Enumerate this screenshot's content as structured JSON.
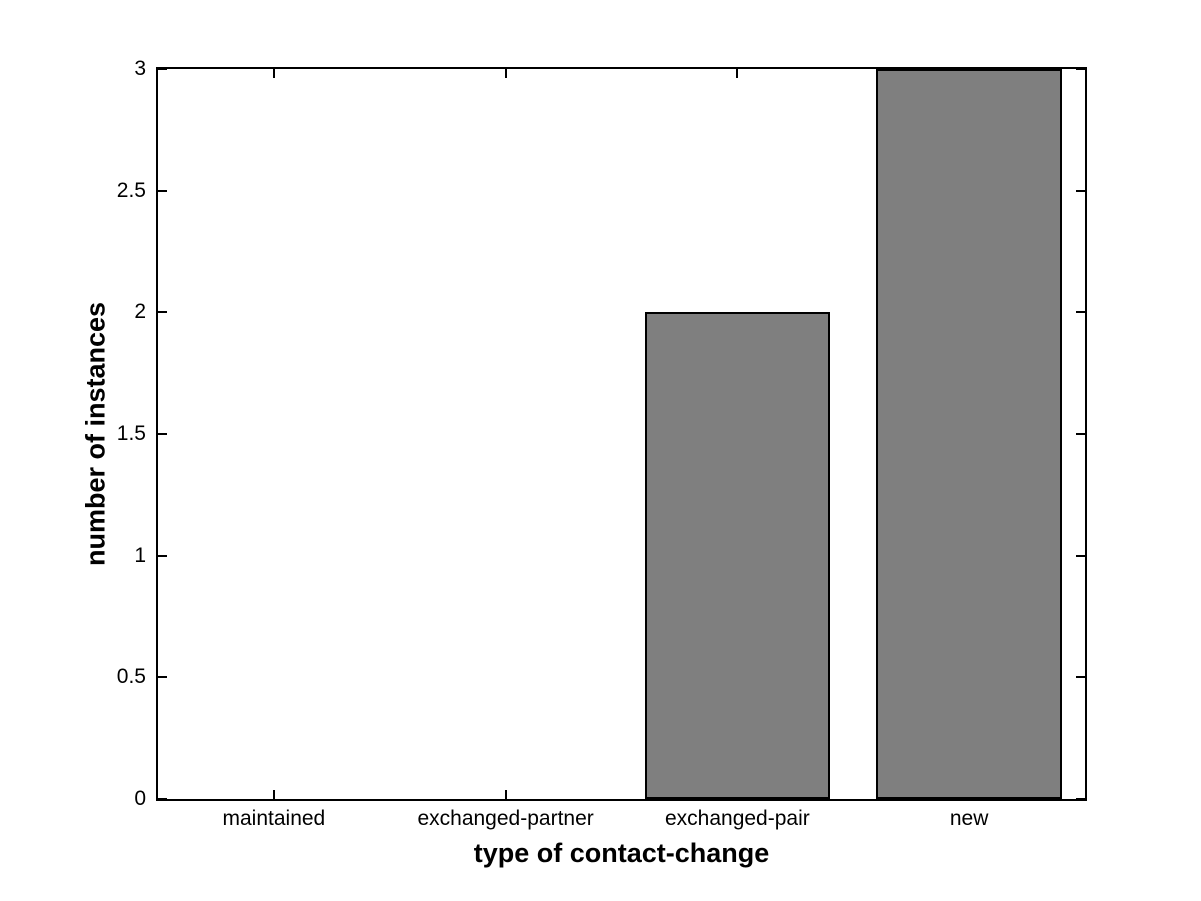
{
  "chart_data": {
    "type": "bar",
    "title": "",
    "xlabel": "type of contact-change",
    "ylabel": "number of instances",
    "categories": [
      "maintained",
      "exchanged-partner",
      "exchanged-pair",
      "new"
    ],
    "values": [
      0,
      0,
      2,
      3
    ],
    "xlim": [
      0.5,
      4.5
    ],
    "ylim": [
      0,
      3
    ],
    "yticks": [
      0,
      0.5,
      1,
      1.5,
      2,
      2.5,
      3
    ],
    "ytick_labels": [
      "0",
      "0.5",
      "1",
      "1.5",
      "2",
      "2.5",
      "3"
    ],
    "bar_width_fraction": 0.8,
    "grid": false,
    "legend": null,
    "colors": {
      "bar_fill": "#7f7f7f",
      "bar_edge": "#000000",
      "axis": "#000000",
      "background": "#ffffff"
    }
  }
}
